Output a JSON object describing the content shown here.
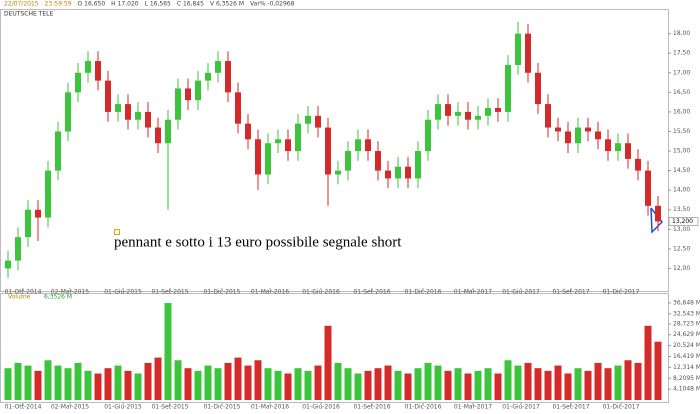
{
  "chart_data": [
    {
      "type": "candlestick",
      "title": "DEUTSCHE TELE",
      "header": [
        "22/07/2015",
        "23:59:59",
        "O 16,650",
        "H 17,020",
        "L 16,565",
        "C 16,845",
        "V 6,3526 M",
        "Var% -0,02968"
      ],
      "annotation": "pennant e sotto i 13 euro possibile segnale short",
      "up_color": "#3cc43c",
      "down_color": "#d42a2a",
      "open": [
        12.0,
        12.2,
        12.8,
        13.5,
        13.3,
        14.5,
        15.5,
        16.5,
        17.0,
        17.3,
        16.8,
        16.0,
        16.2,
        15.8,
        16.0,
        15.6,
        15.2,
        15.8,
        16.6,
        16.3,
        16.8,
        17.0,
        17.3,
        16.5,
        15.7,
        15.3,
        14.4,
        15.2,
        15.3,
        15.0,
        15.7,
        15.9,
        15.6,
        14.4,
        14.5,
        15.0,
        15.3,
        15.0,
        14.5,
        14.3,
        14.6,
        14.3,
        15.0,
        15.8,
        16.2,
        15.9,
        16.0,
        15.8,
        15.9,
        16.1,
        16.0,
        17.2,
        18.0,
        17.0,
        16.2,
        15.6,
        15.5,
        15.2,
        15.6,
        15.5,
        15.3,
        15.0,
        15.2,
        14.8,
        14.5,
        13.6
      ],
      "high": [
        12.45,
        13.05,
        13.75,
        13.75,
        14.75,
        15.75,
        16.75,
        17.25,
        17.55,
        17.55,
        17.05,
        16.45,
        16.45,
        16.25,
        16.25,
        15.85,
        16.05,
        16.85,
        16.85,
        17.05,
        17.25,
        17.55,
        17.55,
        16.75,
        15.95,
        15.55,
        15.45,
        15.55,
        15.55,
        15.95,
        16.15,
        16.15,
        15.85,
        14.75,
        15.25,
        15.55,
        15.55,
        15.25,
        14.75,
        14.85,
        14.85,
        15.25,
        16.05,
        16.45,
        16.45,
        16.25,
        16.25,
        16.15,
        16.35,
        16.35,
        17.45,
        18.3,
        18.25,
        17.25,
        16.45,
        15.85,
        15.75,
        15.85,
        15.85,
        15.75,
        15.55,
        15.45,
        15.45,
        15.05,
        14.75,
        13.85
      ],
      "low": [
        11.75,
        11.95,
        12.55,
        12.7,
        13.05,
        14.25,
        15.25,
        16.25,
        16.75,
        16.55,
        15.75,
        15.75,
        15.55,
        15.55,
        15.35,
        14.95,
        13.5,
        15.55,
        16.05,
        16.05,
        16.55,
        16.75,
        16.25,
        15.45,
        15.05,
        14.0,
        14.15,
        14.95,
        14.75,
        14.75,
        15.45,
        15.35,
        13.6,
        14.15,
        14.25,
        14.75,
        14.75,
        14.25,
        14.05,
        14.05,
        14.05,
        14.05,
        14.75,
        15.55,
        15.65,
        15.65,
        15.55,
        15.55,
        15.65,
        15.75,
        15.75,
        16.95,
        16.75,
        15.95,
        15.35,
        15.25,
        14.95,
        14.95,
        15.25,
        15.05,
        14.75,
        14.75,
        14.55,
        14.25,
        13.35,
        12.95
      ],
      "close": [
        12.2,
        12.8,
        13.5,
        13.3,
        14.5,
        15.5,
        16.5,
        17.0,
        17.3,
        16.8,
        16.0,
        16.2,
        15.8,
        16.0,
        15.6,
        15.2,
        15.8,
        16.6,
        16.3,
        16.8,
        17.0,
        17.3,
        16.5,
        15.7,
        15.3,
        14.4,
        15.2,
        15.3,
        15.0,
        15.7,
        15.9,
        15.6,
        14.4,
        14.5,
        15.0,
        15.3,
        15.0,
        14.5,
        14.3,
        14.6,
        14.3,
        15.0,
        15.8,
        16.2,
        15.9,
        16.0,
        15.8,
        15.9,
        16.1,
        16.0,
        17.2,
        18.0,
        17.0,
        16.2,
        15.6,
        15.5,
        15.2,
        15.6,
        15.5,
        15.3,
        15.0,
        15.2,
        14.8,
        14.5,
        13.6,
        13.2
      ],
      "last_price": {
        "value": 13.2,
        "label": "13,200"
      },
      "xlim": [
        -0.5,
        65.5
      ],
      "xticks": [
        {
          "value": 1.5,
          "label": "01-Ott-2014"
        },
        {
          "value": 6.2,
          "label": "02-Mar-2015"
        },
        {
          "value": 11.5,
          "label": "01-Giu-2015"
        },
        {
          "value": 16.2,
          "label": "01-Set-2015"
        },
        {
          "value": 21.4,
          "label": "01-Dic-2015"
        },
        {
          "value": 26.2,
          "label": "01-Mar-2016"
        },
        {
          "value": 31.3,
          "label": "01-Giu-2016"
        },
        {
          "value": 36.4,
          "label": "01-Set-2016"
        },
        {
          "value": 41.5,
          "label": "01-Dic-2016"
        },
        {
          "value": 46.5,
          "label": "01-Mar-2017"
        },
        {
          "value": 51.3,
          "label": "01-Giu-2017"
        },
        {
          "value": 56.3,
          "label": "01-Set-2017"
        },
        {
          "value": 61.3,
          "label": "01-Dic-2017"
        }
      ],
      "ylim": [
        11.5,
        18.4
      ],
      "yticks": [
        {
          "value": 12,
          "label": "12,00"
        },
        {
          "value": 12.5,
          "label": "12,50"
        },
        {
          "value": 13,
          "label": "13,00"
        },
        {
          "value": 13.5,
          "label": "13,50"
        },
        {
          "value": 14,
          "label": "14,00"
        },
        {
          "value": 14.5,
          "label": "14,50"
        },
        {
          "value": 15,
          "label": "15,00"
        },
        {
          "value": 15.5,
          "label": "15,50"
        },
        {
          "value": 16,
          "label": "16,00"
        },
        {
          "value": 16.5,
          "label": "16,50"
        },
        {
          "value": 17,
          "label": "17,00"
        },
        {
          "value": 17.5,
          "label": "17,50"
        },
        {
          "value": 18,
          "label": "18,00"
        }
      ]
    },
    {
      "type": "volume",
      "title": "Volume",
      "current": {
        "value": 6.3526,
        "label": "6,3526 M"
      },
      "values": [
        12,
        14,
        13,
        11,
        15,
        13,
        12,
        14,
        11,
        10,
        12,
        13,
        11,
        10,
        14,
        16,
        36.6,
        15,
        12,
        11,
        13,
        12,
        14,
        16,
        13,
        15,
        12,
        11,
        10,
        12,
        11,
        13,
        28,
        14,
        12,
        10,
        11,
        12,
        13,
        11,
        10,
        12,
        14,
        13,
        11,
        12,
        10,
        11,
        12,
        10,
        15,
        13,
        14,
        12,
        11,
        13,
        10,
        12,
        11,
        14,
        12,
        13,
        15,
        14,
        28,
        22
      ],
      "xlim": [
        -0.5,
        65.5
      ],
      "xticks": [
        {
          "value": 1.5,
          "label": "01-Ott-2014"
        },
        {
          "value": 6.2,
          "label": "02-Mar-2015"
        },
        {
          "value": 11.5,
          "label": "01-Giu-2015"
        },
        {
          "value": 16.2,
          "label": "01-Set-2015"
        },
        {
          "value": 21.4,
          "label": "01-Dic-2015"
        },
        {
          "value": 26.2,
          "label": "01-Mar-2016"
        },
        {
          "value": 31.3,
          "label": "01-Giu-2016"
        },
        {
          "value": 36.4,
          "label": "01-Set-2016"
        },
        {
          "value": 41.5,
          "label": "01-Dic-2016"
        },
        {
          "value": 46.5,
          "label": "01-Mar-2017"
        },
        {
          "value": 51.3,
          "label": "01-Giu-2017"
        },
        {
          "value": 56.3,
          "label": "01-Set-2017"
        },
        {
          "value": 61.3,
          "label": "01-Dic-2017"
        }
      ],
      "ylim": [
        0,
        38.5
      ],
      "yticks": [
        {
          "value": 4.1048,
          "label": "4,1048 M"
        },
        {
          "value": 8.2095,
          "label": "8,2095 M"
        },
        {
          "value": 12.314,
          "label": "12,314 M"
        },
        {
          "value": 16.419,
          "label": "16,419 M"
        },
        {
          "value": 20.524,
          "label": "20,524 M"
        },
        {
          "value": 24.629,
          "label": "24,629 M"
        },
        {
          "value": 28.723,
          "label": "28,723 M"
        },
        {
          "value": 32.543,
          "label": "32,543 M"
        },
        {
          "value": 36.648,
          "label": "36,648 M"
        }
      ]
    }
  ]
}
